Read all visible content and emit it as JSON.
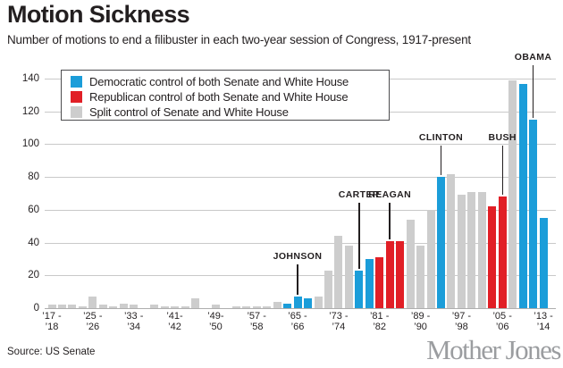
{
  "title": "Motion Sickness",
  "subtitle": "Number of motions to end a filibuster in each two-year session of Congress, 1917-present",
  "source": "Source: US Senate",
  "logo_text": "Mother Jones",
  "colors": {
    "democratic": "#1b9dd9",
    "republican": "#e11f26",
    "split": "#cdcdcd",
    "grid": "#c9c9c9",
    "text": "#231f20",
    "logo": "#9b9da0"
  },
  "legend": [
    {
      "label": "Democratic control of both Senate and White House",
      "color_key": "democratic"
    },
    {
      "label": "Republican control of both Senate and White House",
      "color_key": "republican"
    },
    {
      "label": "Split control of Senate and White House",
      "color_key": "split"
    }
  ],
  "chart_data": {
    "type": "bar",
    "title": "Motion Sickness",
    "xlabel": "",
    "ylabel": "",
    "ylim": [
      0,
      140
    ],
    "yticks": [
      0,
      20,
      40,
      60,
      80,
      100,
      120,
      140
    ],
    "grid": true,
    "legend_position": "top-left",
    "sessions": [
      {
        "years": "1917-18",
        "value": 2,
        "party": "split",
        "tick": [
          "’17 -",
          "’18"
        ]
      },
      {
        "years": "1919-20",
        "value": 2,
        "party": "split"
      },
      {
        "years": "1921-22",
        "value": 2,
        "party": "split"
      },
      {
        "years": "1923-24",
        "value": 1,
        "party": "split"
      },
      {
        "years": "1925-26",
        "value": 7,
        "party": "split",
        "tick": [
          "’25 -",
          "’26"
        ]
      },
      {
        "years": "1927-28",
        "value": 2,
        "party": "split"
      },
      {
        "years": "1929-30",
        "value": 1,
        "party": "split"
      },
      {
        "years": "1931-32",
        "value": 3,
        "party": "split"
      },
      {
        "years": "1933-34",
        "value": 2,
        "party": "split",
        "tick": [
          "’33 -",
          "’34"
        ]
      },
      {
        "years": "1935-36",
        "value": 0,
        "party": "split"
      },
      {
        "years": "1937-38",
        "value": 2,
        "party": "split"
      },
      {
        "years": "1939-40",
        "value": 1,
        "party": "split"
      },
      {
        "years": "1941-42",
        "value": 1,
        "party": "split",
        "tick": [
          "’41-",
          "’42"
        ]
      },
      {
        "years": "1943-44",
        "value": 1,
        "party": "split"
      },
      {
        "years": "1945-46",
        "value": 6,
        "party": "split"
      },
      {
        "years": "1947-48",
        "value": 0,
        "party": "split"
      },
      {
        "years": "1949-50",
        "value": 2,
        "party": "split",
        "tick": [
          "’49-",
          "’50"
        ]
      },
      {
        "years": "1951-52",
        "value": 0,
        "party": "split"
      },
      {
        "years": "1953-54",
        "value": 1,
        "party": "split"
      },
      {
        "years": "1955-56",
        "value": 1,
        "party": "split"
      },
      {
        "years": "1957-58",
        "value": 1,
        "party": "split",
        "tick": [
          "’57 -",
          "’58"
        ]
      },
      {
        "years": "1959-60",
        "value": 1,
        "party": "split"
      },
      {
        "years": "1961-62",
        "value": 4,
        "party": "split"
      },
      {
        "years": "1963-64",
        "value": 3,
        "party": "democratic"
      },
      {
        "years": "1965-66",
        "value": 7,
        "party": "democratic",
        "tick": [
          "’65 -",
          "’66"
        ]
      },
      {
        "years": "1967-68",
        "value": 6,
        "party": "democratic"
      },
      {
        "years": "1969-70",
        "value": 7,
        "party": "split"
      },
      {
        "years": "1971-72",
        "value": 23,
        "party": "split"
      },
      {
        "years": "1973-74",
        "value": 44,
        "party": "split",
        "tick": [
          "’73 -",
          "’74"
        ]
      },
      {
        "years": "1975-76",
        "value": 38,
        "party": "split"
      },
      {
        "years": "1977-78",
        "value": 23,
        "party": "democratic"
      },
      {
        "years": "1979-80",
        "value": 30,
        "party": "democratic"
      },
      {
        "years": "1981-82",
        "value": 31,
        "party": "republican",
        "tick": [
          "’81 -",
          "’82"
        ]
      },
      {
        "years": "1983-84",
        "value": 41,
        "party": "republican"
      },
      {
        "years": "1985-86",
        "value": 41,
        "party": "republican"
      },
      {
        "years": "1987-88",
        "value": 54,
        "party": "split"
      },
      {
        "years": "1989-90",
        "value": 38,
        "party": "split",
        "tick": [
          "’89 -",
          "’90"
        ]
      },
      {
        "years": "1991-92",
        "value": 60,
        "party": "split"
      },
      {
        "years": "1993-94",
        "value": 80,
        "party": "democratic"
      },
      {
        "years": "1995-96",
        "value": 82,
        "party": "split"
      },
      {
        "years": "1997-98",
        "value": 69,
        "party": "split",
        "tick": [
          "’97 -",
          "’98"
        ]
      },
      {
        "years": "1999-00",
        "value": 71,
        "party": "split"
      },
      {
        "years": "2001-02",
        "value": 71,
        "party": "split"
      },
      {
        "years": "2003-04",
        "value": 62,
        "party": "republican"
      },
      {
        "years": "2005-06",
        "value": 68,
        "party": "republican",
        "tick": [
          "’05 -",
          "’06"
        ]
      },
      {
        "years": "2007-08",
        "value": 139,
        "party": "split"
      },
      {
        "years": "2009-10",
        "value": 137,
        "party": "democratic"
      },
      {
        "years": "2011-12",
        "value": 115,
        "party": "democratic"
      },
      {
        "years": "2013-14",
        "value": 55,
        "party": "democratic",
        "tick": [
          "’13 -",
          "’14"
        ]
      }
    ],
    "annotations": [
      {
        "text": "JOHNSON",
        "index": 24
      },
      {
        "text": "CARTER",
        "index": 30
      },
      {
        "text": "REAGAN",
        "index": 33
      },
      {
        "text": "CLINTON",
        "index": 38
      },
      {
        "text": "BUSH",
        "index": 44
      },
      {
        "text": "OBAMA",
        "index": 47
      }
    ]
  }
}
